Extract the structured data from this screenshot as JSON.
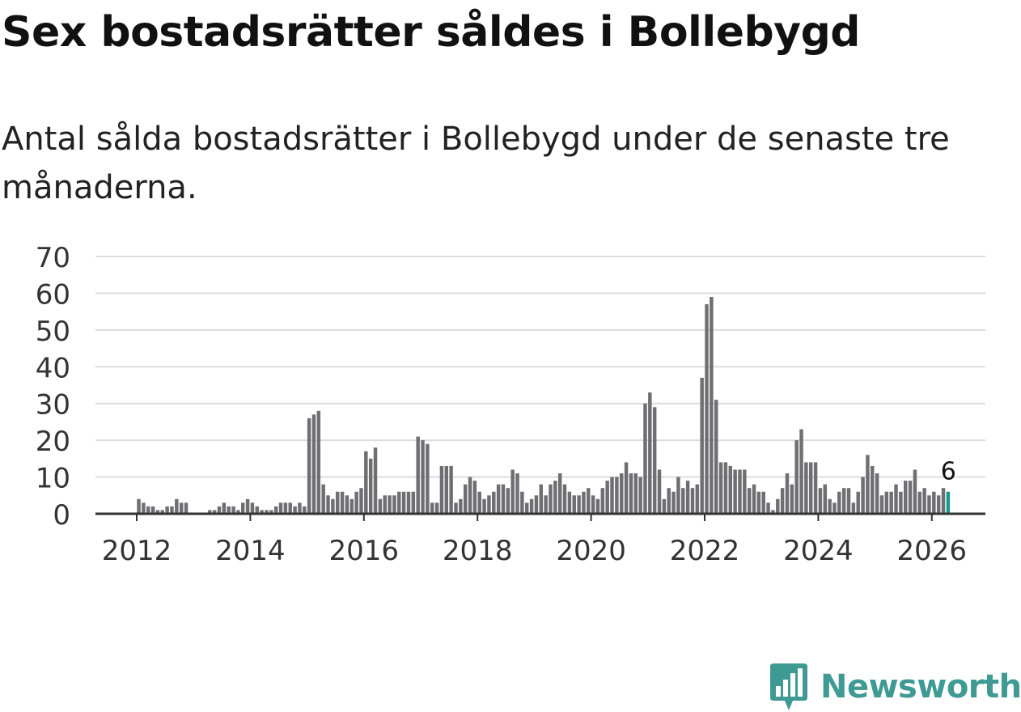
{
  "title": "Sex bostadsrätter såldes i Bollebygd",
  "subtitle": "Antal sålda bostadsrätter i Bollebygd under de senaste tre månaderna.",
  "brand": {
    "name": "Newsworthy",
    "color": "#3f9a94",
    "icon": "bar-chart-badge-icon"
  },
  "colors": {
    "bar": "#6e6e73",
    "highlight": "#179a93",
    "grid": "#dcdcdc",
    "axis": "#333333"
  },
  "chart_data": {
    "type": "bar",
    "title": "Sex bostadsrätter såldes i Bollebygd",
    "xlabel": "",
    "ylabel": "",
    "ylim": [
      0,
      70
    ],
    "yticks": [
      0,
      10,
      20,
      30,
      40,
      50,
      60,
      70
    ],
    "xtick_labels": [
      "2012",
      "2014",
      "2016",
      "2018",
      "2020",
      "2022",
      "2024",
      "2026"
    ],
    "start": "2012-01",
    "x_label_format": "YYYY-MM",
    "grid": true,
    "legend": "none",
    "values": [
      4,
      3,
      2,
      2,
      1,
      1,
      2,
      2,
      4,
      3,
      3,
      0,
      0,
      0,
      0,
      1,
      1,
      2,
      3,
      2,
      2,
      1,
      3,
      4,
      3,
      2,
      1,
      1,
      1,
      2,
      3,
      3,
      3,
      2,
      3,
      2,
      26,
      27,
      28,
      8,
      5,
      4,
      6,
      6,
      5,
      4,
      6,
      7,
      17,
      15,
      18,
      4,
      5,
      5,
      5,
      6,
      6,
      6,
      6,
      21,
      20,
      19,
      3,
      3,
      13,
      13,
      13,
      3,
      4,
      8,
      10,
      9,
      6,
      4,
      5,
      6,
      8,
      8,
      7,
      12,
      11,
      6,
      3,
      4,
      5,
      8,
      5,
      8,
      9,
      11,
      8,
      6,
      5,
      5,
      6,
      7,
      5,
      4,
      7,
      9,
      10,
      10,
      11,
      14,
      11,
      11,
      10,
      30,
      33,
      29,
      12,
      4,
      7,
      6,
      10,
      7,
      9,
      7,
      8,
      37,
      57,
      59,
      31,
      14,
      14,
      13,
      12,
      12,
      12,
      7,
      8,
      6,
      6,
      3,
      1,
      4,
      7,
      11,
      8,
      20,
      23,
      14,
      14,
      14,
      7,
      8,
      4,
      3,
      6,
      7,
      7,
      3,
      6,
      10,
      16,
      13,
      11,
      5,
      6,
      6,
      8,
      6,
      9,
      9,
      12,
      6,
      7,
      5,
      6,
      5,
      7,
      6
    ],
    "highlight_last": true,
    "annotations": [
      {
        "label": "6",
        "target": "last"
      }
    ]
  }
}
